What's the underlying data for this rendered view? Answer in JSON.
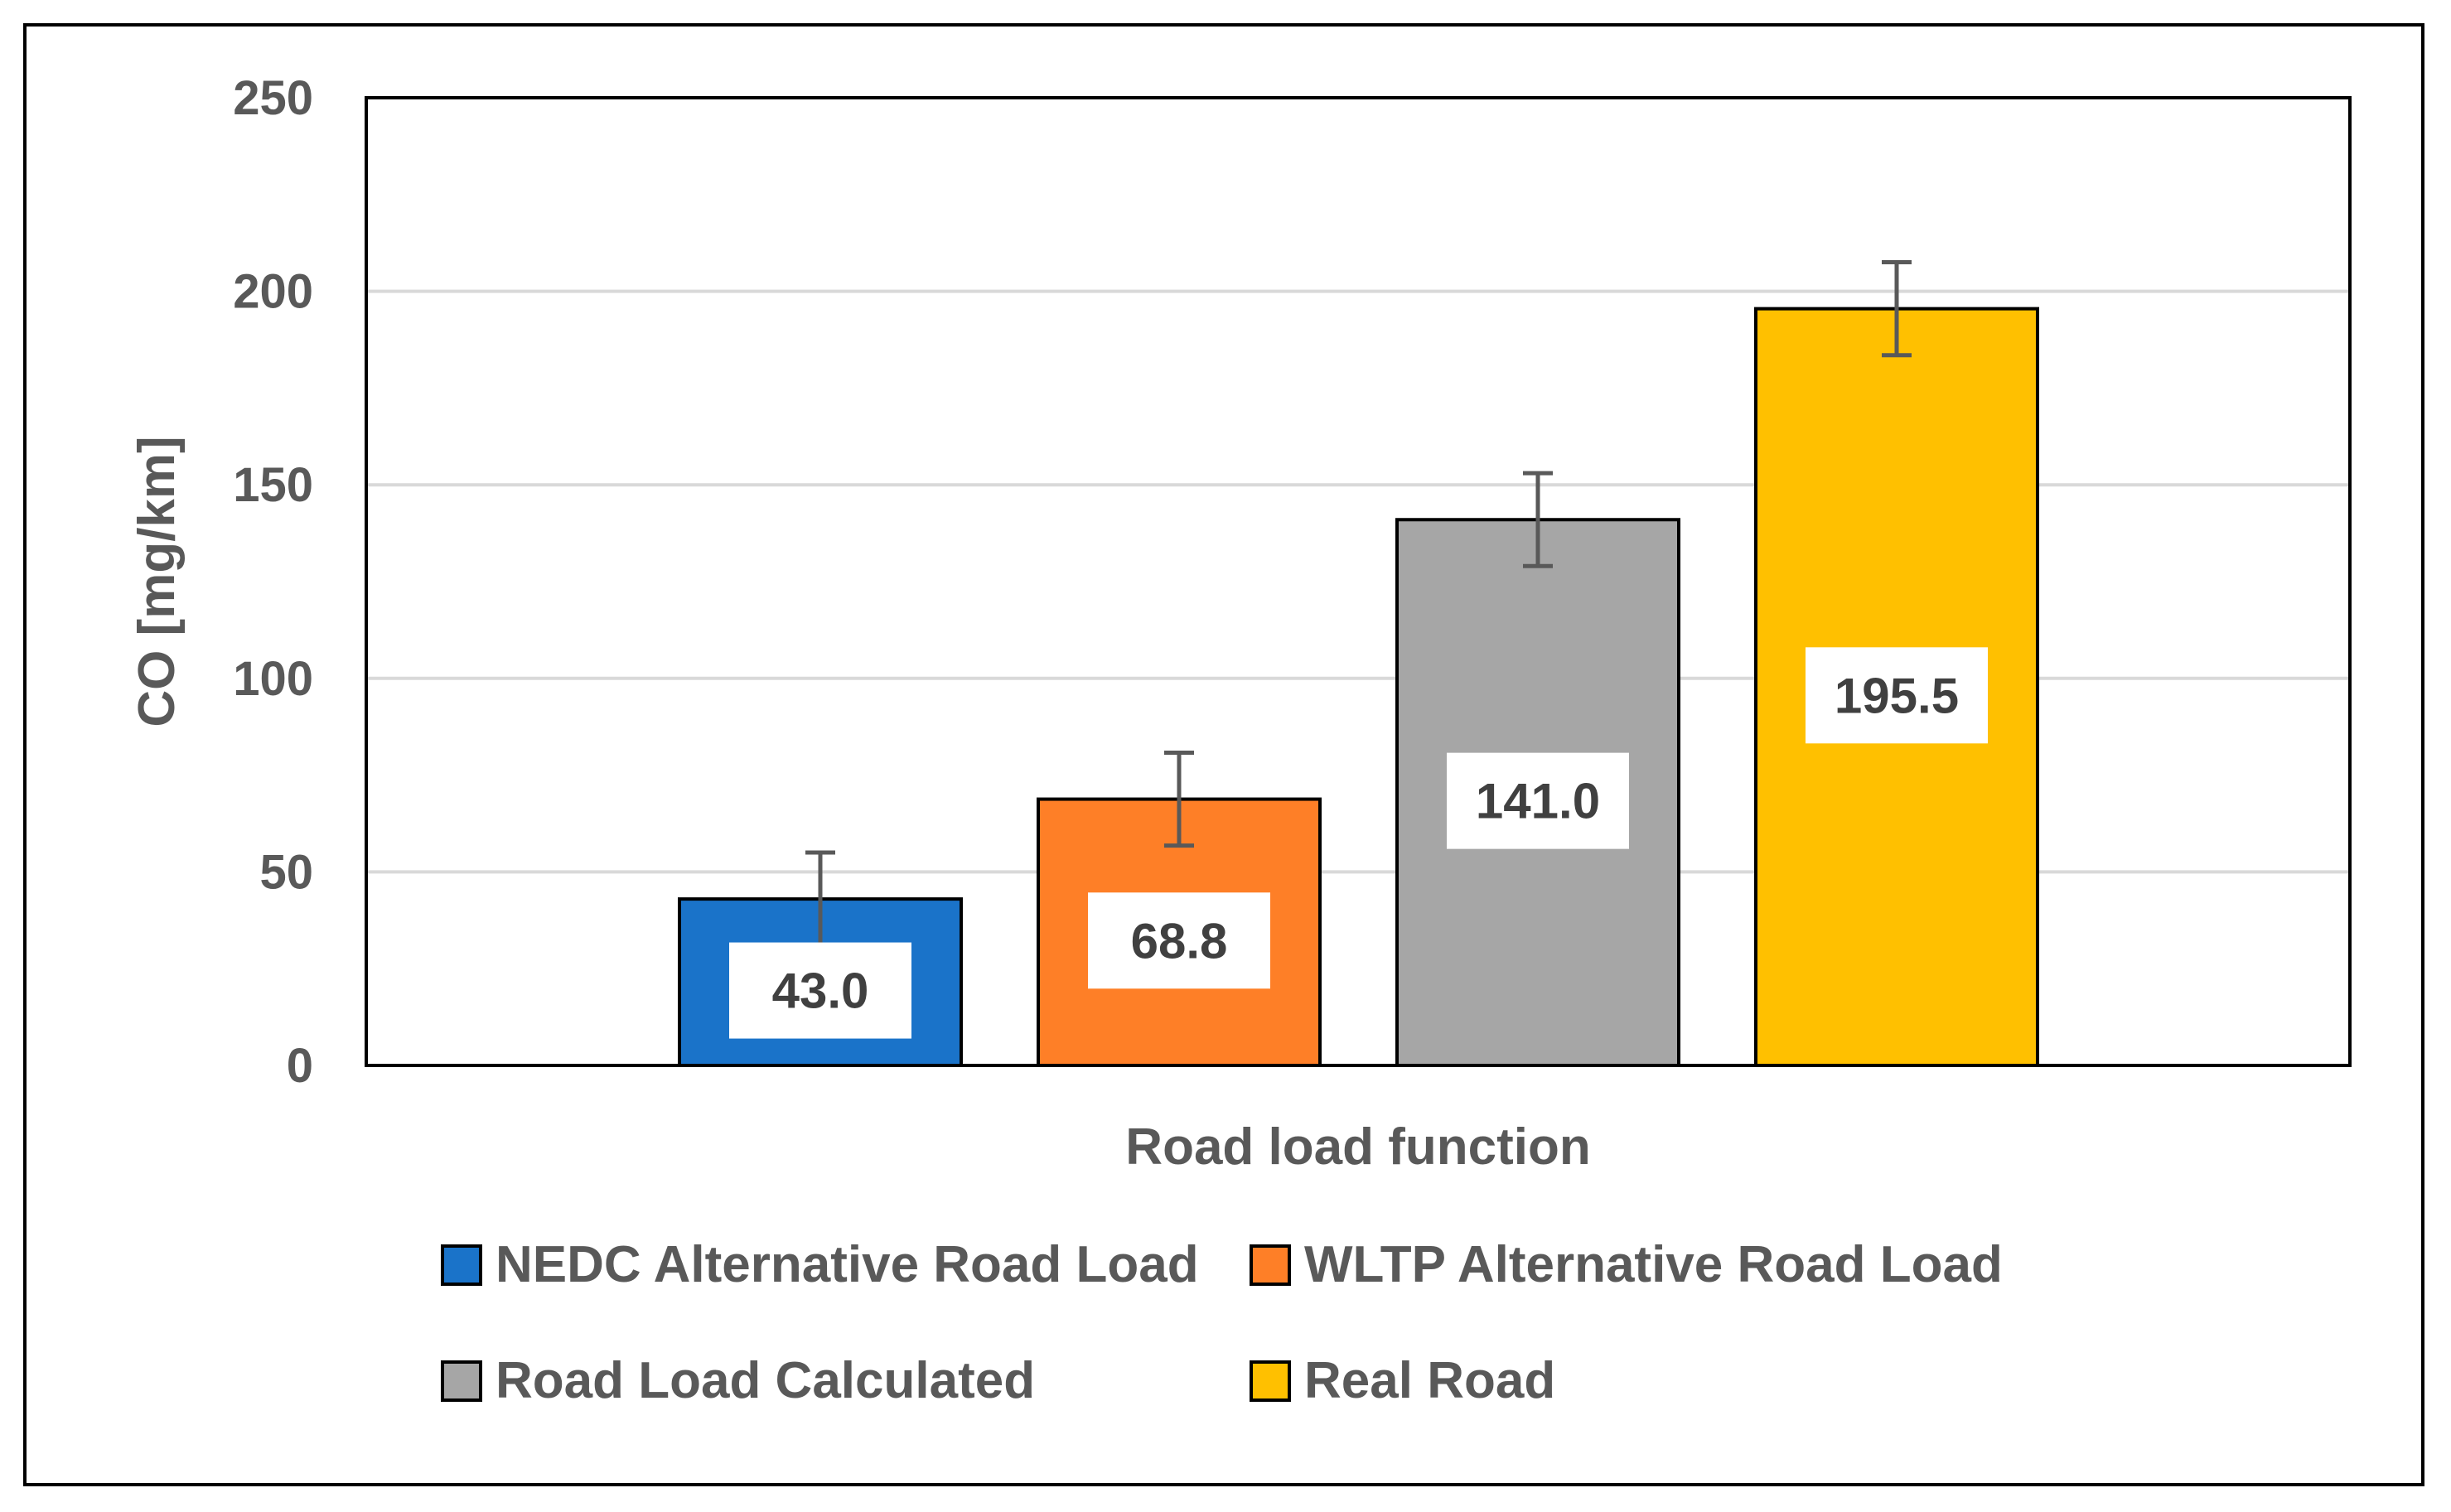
{
  "chart_data": {
    "type": "bar",
    "title": "",
    "xlabel": "Road load function",
    "ylabel": "CO [mg/km]",
    "ylim": [
      0,
      250
    ],
    "yticks": [
      0,
      50,
      100,
      150,
      200,
      250
    ],
    "ytick_labels": [
      "0",
      "50",
      "100",
      "150",
      "200",
      "250"
    ],
    "grid": true,
    "legend_position": "bottom",
    "series": [
      {
        "name": "NEDC Alternative Road Load",
        "value": 43.0,
        "label": "43.0",
        "error": 12,
        "color": "#1a73c9"
      },
      {
        "name": "WLTP Alternative Road Load",
        "value": 68.8,
        "label": "68.8",
        "error": 12,
        "color": "#fe7f27"
      },
      {
        "name": "Road Load Calculated",
        "value": 141.0,
        "label": "141.0",
        "error": 12,
        "color": "#a6a6a6"
      },
      {
        "name": "Real Road",
        "value": 195.5,
        "label": "195.5",
        "error": 12,
        "color": "#ffc000"
      }
    ]
  }
}
